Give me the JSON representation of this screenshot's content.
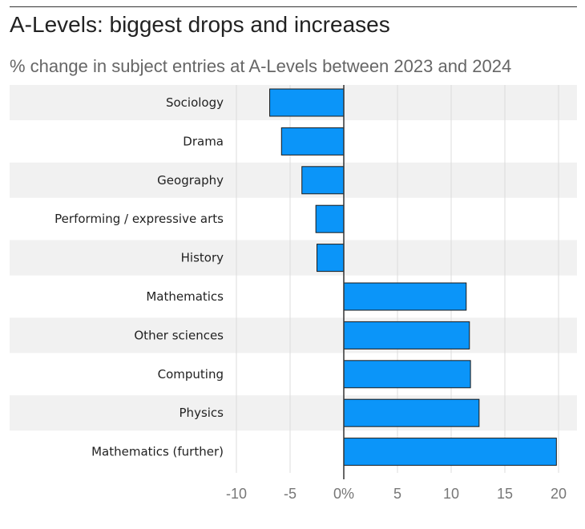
{
  "title": "A-Levels: biggest drops and increases",
  "subtitle": "% change in subject entries at A-Levels between 2023 and 2024",
  "colors": {
    "bar": "#0b95f9",
    "bar_outline": "#1a1a1a",
    "band": "#f1f1f1",
    "grid": "#dcdcdc",
    "axis": "#333333"
  },
  "chart_data": {
    "type": "bar",
    "orientation": "horizontal",
    "title": "A-Levels: biggest drops and increases",
    "subtitle": "% change in subject entries at A-Levels between 2023 and 2024",
    "xlabel": "",
    "ylabel": "",
    "xlim": [
      -10,
      20
    ],
    "ticks": [
      -10,
      -5,
      0,
      5,
      10,
      15,
      20
    ],
    "tick_labels": [
      "-10",
      "-5",
      "0%",
      "5",
      "10",
      "15",
      "20"
    ],
    "grid": true,
    "categories": [
      "Sociology",
      "Drama",
      "Geography",
      "Performing / expressive arts",
      "History",
      "Mathematics",
      "Other sciences",
      "Computing",
      "Physics",
      "Mathematics (further)"
    ],
    "values": [
      -6.9,
      -5.8,
      -3.9,
      -2.6,
      -2.5,
      11.4,
      11.7,
      11.8,
      12.6,
      19.8
    ]
  }
}
